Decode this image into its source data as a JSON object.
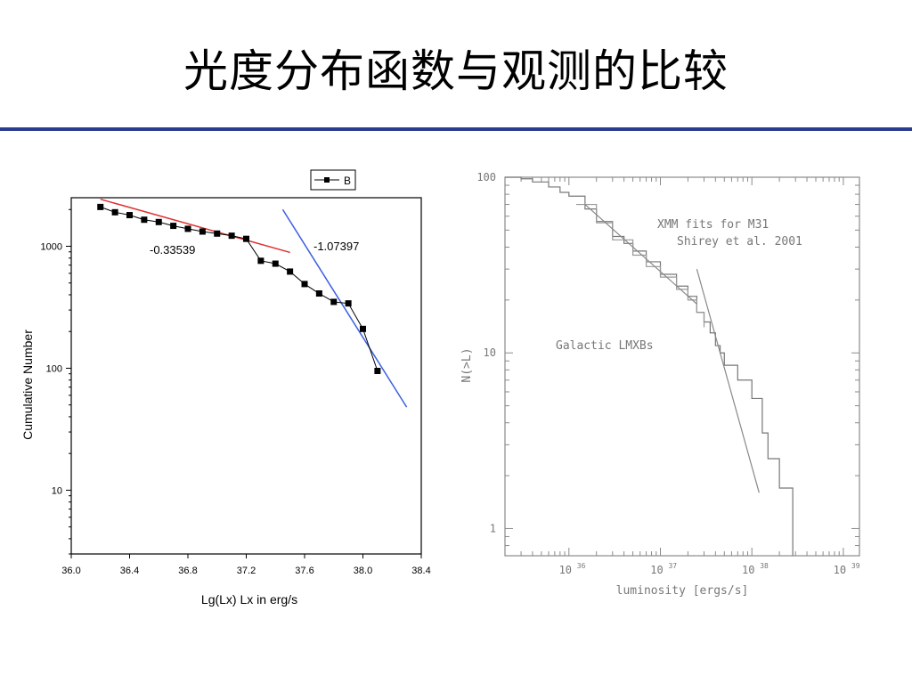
{
  "slide": {
    "title": "光度分布函数与观测的比较"
  },
  "chart_data": [
    {
      "type": "scatter",
      "xlabel": "Lg(Lx) Lx in erg/s",
      "ylabel": "Cumulative Number",
      "xlim": [
        36.0,
        38.4
      ],
      "ylim": [
        3,
        2500
      ],
      "y_scale": "log",
      "x_ticks": [
        "36.0",
        "36.4",
        "36.8",
        "37.2",
        "37.6",
        "38.0",
        "38.4"
      ],
      "x_tick_values": [
        36.0,
        36.4,
        36.8,
        37.2,
        37.6,
        38.0,
        38.4
      ],
      "y_ticks": [
        "10",
        "100",
        "1000"
      ],
      "y_tick_values": [
        10,
        100,
        1000
      ],
      "legend": {
        "label": "B",
        "placement": "top-right"
      },
      "series": [
        {
          "name": "B",
          "x": [
            36.2,
            36.3,
            36.4,
            36.5,
            36.6,
            36.7,
            36.8,
            36.9,
            37.0,
            37.1,
            37.2,
            37.3,
            37.4,
            37.5,
            37.6,
            37.7,
            37.8,
            37.9,
            38.0,
            38.1
          ],
          "y": [
            2100,
            1900,
            1800,
            1650,
            1580,
            1470,
            1390,
            1320,
            1270,
            1220,
            1150,
            760,
            720,
            620,
            490,
            410,
            350,
            340,
            210,
            95
          ]
        }
      ],
      "fits": [
        {
          "label": "-0.33539",
          "x": [
            36.2,
            37.5
          ],
          "y": [
            2430,
            890
          ],
          "color": "#e03030"
        },
        {
          "label": "-1.07397",
          "x": [
            37.45,
            38.3
          ],
          "y": [
            2000,
            48
          ],
          "color": "#3a5fe0"
        }
      ]
    },
    {
      "type": "line",
      "xlabel": "luminosity [ergs/s]",
      "ylabel": "N(>L)",
      "x_scale": "log",
      "y_scale": "log",
      "xlim": [
        2e+35,
        1.5e+39
      ],
      "ylim": [
        0.7,
        100
      ],
      "x_ticks": [
        {
          "value": 1e+36,
          "base": "10",
          "exp": "36"
        },
        {
          "value": 1e+37,
          "base": "10",
          "exp": "37"
        },
        {
          "value": 1e+38,
          "base": "10",
          "exp": "38"
        },
        {
          "value": 1e+39,
          "base": "10",
          "exp": "39"
        }
      ],
      "y_ticks": [
        "1",
        "10",
        "100"
      ],
      "y_tick_values": [
        1,
        10,
        100
      ],
      "annotations": [
        "XMM fits for M31",
        "Shirey et al. 2001",
        "Galactic LMXBs"
      ],
      "series": [
        {
          "x": [
            2e+35,
            3e+35,
            4e+35,
            6e+35,
            8e+35,
            1e+36,
            1.5e+36,
            2e+36,
            3e+36,
            4e+36,
            5e+36,
            7e+36,
            1e+37,
            1.5e+37,
            2e+37,
            2.5e+37,
            3e+37,
            3.5e+37,
            4e+37,
            4.5e+37,
            5e+37,
            7e+37,
            1e+38,
            1.3e+38,
            1.5e+38,
            2e+38,
            2.5e+38,
            2.8e+38
          ],
          "y": [
            100,
            98,
            94,
            88,
            82,
            78,
            66,
            56,
            46,
            42,
            38,
            33,
            28,
            24,
            21,
            17,
            15,
            13,
            11,
            10,
            8.5,
            7,
            5.5,
            3.5,
            2.5,
            1.7,
            1.7,
            0.7
          ],
          "color": "#777777"
        },
        {
          "x": [
            1.2e+36,
            2e+36,
            3e+36,
            5e+36,
            7e+36,
            1e+37,
            1.5e+37,
            2e+37,
            2.5e+37,
            3e+37
          ],
          "y": [
            70,
            55,
            44,
            36,
            31,
            27,
            23,
            20,
            17,
            14
          ],
          "color": "#999999"
        }
      ],
      "fits": [
        {
          "x": [
            1.5e+36,
            2.5e+37
          ],
          "y": [
            70,
            19
          ],
          "color": "#888888"
        },
        {
          "x": [
            2.5e+37,
            1.2e+38
          ],
          "y": [
            30,
            1.6
          ],
          "color": "#888888"
        }
      ]
    }
  ]
}
